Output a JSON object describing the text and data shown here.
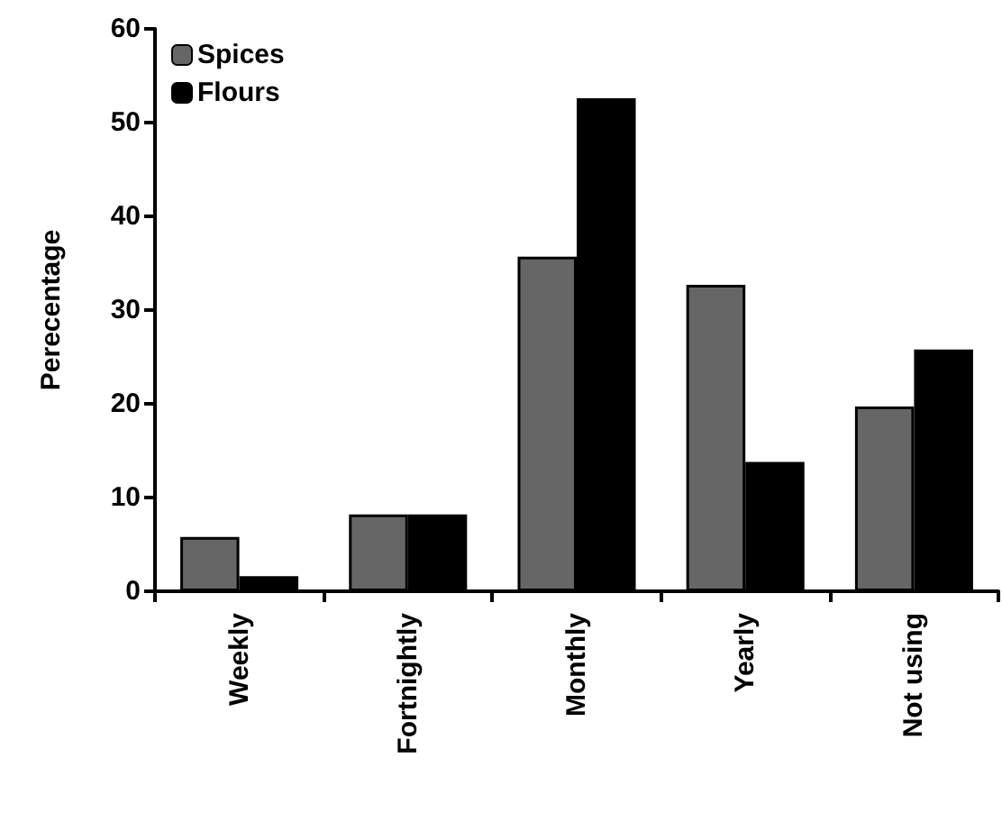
{
  "chart_data": {
    "type": "bar",
    "ylabel": "Perecentage",
    "categories": [
      "Weekly",
      "Fortnightly",
      "Monthly",
      "Yearly",
      "Not using"
    ],
    "series": [
      {
        "name": "Spices",
        "color": "#666666",
        "values": [
          5.8,
          8.2,
          35.7,
          32.7,
          19.7
        ]
      },
      {
        "name": "Flours",
        "color": "#000000",
        "values": [
          1.6,
          8.2,
          52.6,
          13.8,
          25.8
        ]
      }
    ],
    "ylim": [
      0,
      60
    ],
    "yticks": [
      0,
      10,
      20,
      30,
      40,
      50,
      60
    ],
    "grid": false,
    "legend": "top left"
  }
}
